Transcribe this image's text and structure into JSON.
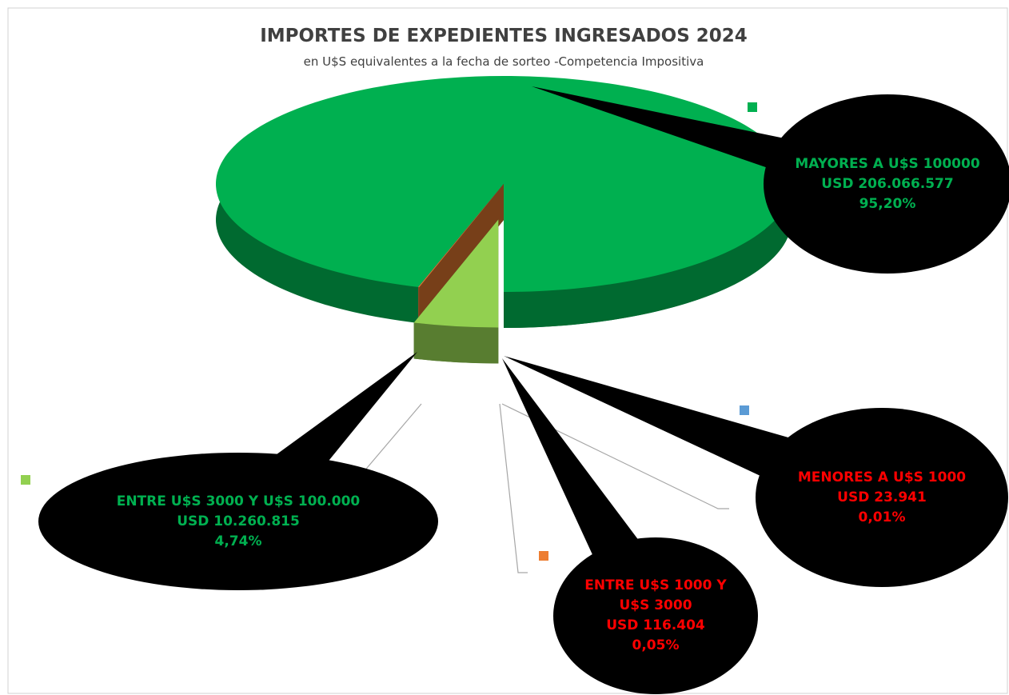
{
  "chart_data": {
    "type": "pie",
    "title": "IMPORTES DE EXPEDIENTES INGRESADOS 2024",
    "subtitle": "en U$S equivalentes a la fecha de sorteo -Competencia Impositiva",
    "categories": [
      "MAYORES A U$S 100000",
      "ENTRE U$S 3000 Y U$S 100.000",
      "ENTRE U$S 1000 Y U$S 3000",
      "MENORES A U$S 1000"
    ],
    "values": [
      206066577,
      10260815,
      116404,
      23941
    ],
    "value_labels": [
      "USD 206.066.577",
      "USD 10.260.815",
      "USD 116.404",
      "USD 23.941"
    ],
    "percentages": [
      95.2,
      4.74,
      0.05,
      0.01
    ],
    "percentage_labels": [
      "95,20%",
      "4,74%",
      "0,05%",
      "0,01%"
    ],
    "colors": [
      "#00b050",
      "#92d050",
      "#ed7d31",
      "#5b9bd5"
    ],
    "label_colors": [
      "#00b050",
      "#00b050",
      "#ff0000",
      "#ff0000"
    ]
  }
}
